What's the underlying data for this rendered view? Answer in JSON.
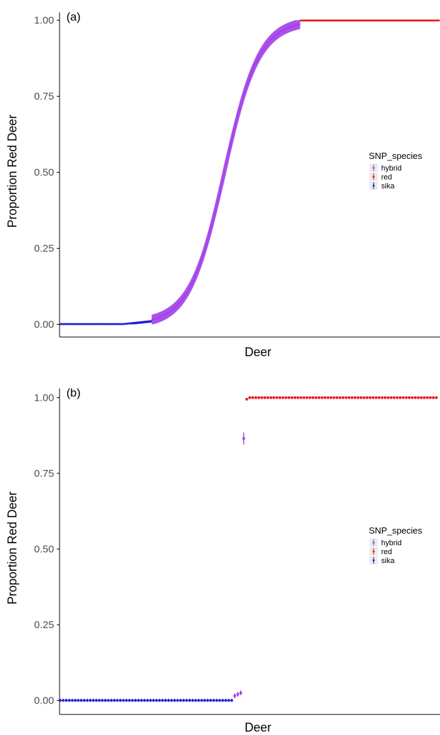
{
  "colors": {
    "hybrid": "#a33ee8",
    "red": "#e8151c",
    "sika": "#1a1ad6",
    "axis": "#000000",
    "tick_text": "#4d4d4d"
  },
  "chart_data": [
    {
      "panel_label": "(a)",
      "type": "scatter",
      "xlabel": "Deer",
      "ylabel": "Proportion Red Deer",
      "ylim": [
        -0.025,
        1.025
      ],
      "y_ticks": [
        "0.00",
        "0.25",
        "0.50",
        "0.75",
        "1.00"
      ],
      "grid": false,
      "legend_title": "SNP_species",
      "legend": [
        "hybrid",
        "red",
        "sika"
      ],
      "legend_placement": "right",
      "x_axis_ticks": false,
      "n_points": 1200,
      "description_of_series": {
        "sika": {
          "x_range": [
            1,
            290
          ],
          "y": 0.0,
          "y_end": 0.01
        },
        "hybrid": {
          "x_range": [
            290,
            760
          ],
          "y_curve": "sigmoid",
          "y_start": 0.01,
          "y_end": 0.99
        },
        "red": {
          "x_range": [
            760,
            1200
          ],
          "y": 1.0
        }
      },
      "error_bar_halfwidth": 0.02
    },
    {
      "panel_label": "(b)",
      "type": "scatter",
      "xlabel": "Deer",
      "ylabel": "Proportion Red Deer",
      "ylim": [
        -0.025,
        1.025
      ],
      "y_ticks": [
        "0.00",
        "0.25",
        "0.50",
        "0.75",
        "1.00"
      ],
      "grid": false,
      "legend_title": "SNP_species",
      "legend": [
        "hybrid",
        "red",
        "sika"
      ],
      "legend_placement": "right",
      "x_axis_ticks": false,
      "series": [
        {
          "name": "sika",
          "x_start": 1,
          "count": 58,
          "y": 0.0,
          "err": 0.005
        },
        {
          "name": "hybrid",
          "x": [
            59,
            60,
            61,
            62
          ],
          "y": [
            0.015,
            0.02,
            0.025,
            0.865
          ],
          "err": [
            0.008,
            0.008,
            0.008,
            0.02
          ]
        },
        {
          "name": "red",
          "x_start": 63,
          "count": 64,
          "y_first": 0.995,
          "y": 1.0,
          "err": 0.004
        }
      ],
      "n_points": 127
    }
  ]
}
